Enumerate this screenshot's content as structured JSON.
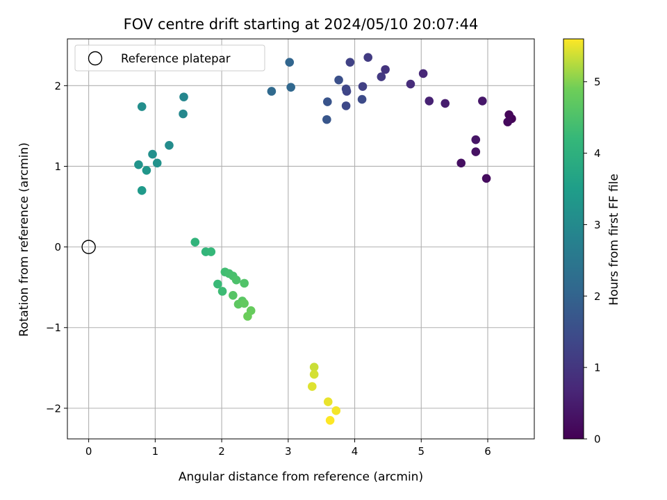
{
  "chart_data": {
    "type": "scatter",
    "title": "FOV centre drift starting at 2024/05/10 20:07:44",
    "xlabel": "Angular distance from reference (arcmin)",
    "ylabel": "Rotation from reference (arcmin)",
    "xlim": [
      -0.32,
      6.7
    ],
    "ylim": [
      -2.38,
      2.58
    ],
    "xticks": [
      0,
      1,
      2,
      3,
      4,
      5,
      6
    ],
    "yticks": [
      -2,
      -1,
      0,
      1,
      2
    ],
    "grid": true,
    "colormap": "viridis",
    "colorbar": {
      "label": "Hours from first FF file",
      "range": [
        0,
        5.6
      ],
      "ticks": [
        0,
        1,
        2,
        3,
        4,
        5
      ]
    },
    "reference": {
      "label": "Reference platepar",
      "x": 0,
      "y": 0
    },
    "legend_position": "upper-left",
    "points": [
      {
        "x": 6.36,
        "y": 1.59,
        "c": 0.05
      },
      {
        "x": 6.32,
        "y": 1.64,
        "c": 0.1
      },
      {
        "x": 6.3,
        "y": 1.55,
        "c": 0.15
      },
      {
        "x": 5.98,
        "y": 0.85,
        "c": 0.2
      },
      {
        "x": 5.6,
        "y": 1.04,
        "c": 0.25
      },
      {
        "x": 5.82,
        "y": 1.18,
        "c": 0.3
      },
      {
        "x": 5.82,
        "y": 1.33,
        "c": 0.35
      },
      {
        "x": 5.92,
        "y": 1.81,
        "c": 0.4
      },
      {
        "x": 5.36,
        "y": 1.78,
        "c": 0.5
      },
      {
        "x": 5.12,
        "y": 1.81,
        "c": 0.6
      },
      {
        "x": 5.03,
        "y": 2.15,
        "c": 0.7
      },
      {
        "x": 4.84,
        "y": 2.02,
        "c": 0.8
      },
      {
        "x": 4.46,
        "y": 2.2,
        "c": 0.95
      },
      {
        "x": 4.4,
        "y": 2.11,
        "c": 1.05
      },
      {
        "x": 4.2,
        "y": 2.35,
        "c": 1.1
      },
      {
        "x": 4.12,
        "y": 1.99,
        "c": 1.2
      },
      {
        "x": 3.93,
        "y": 2.29,
        "c": 1.25
      },
      {
        "x": 3.88,
        "y": 1.93,
        "c": 1.3
      },
      {
        "x": 3.87,
        "y": 1.96,
        "c": 1.35
      },
      {
        "x": 3.87,
        "y": 1.75,
        "c": 1.4
      },
      {
        "x": 4.11,
        "y": 1.83,
        "c": 1.45
      },
      {
        "x": 3.76,
        "y": 2.07,
        "c": 1.55
      },
      {
        "x": 3.59,
        "y": 1.8,
        "c": 1.65
      },
      {
        "x": 3.58,
        "y": 1.58,
        "c": 1.7
      },
      {
        "x": 3.02,
        "y": 2.29,
        "c": 2.05
      },
      {
        "x": 3.04,
        "y": 1.98,
        "c": 2.1
      },
      {
        "x": 2.75,
        "y": 1.93,
        "c": 2.15
      },
      {
        "x": 1.43,
        "y": 1.86,
        "c": 2.9
      },
      {
        "x": 1.42,
        "y": 1.65,
        "c": 2.95
      },
      {
        "x": 1.21,
        "y": 1.26,
        "c": 3.05
      },
      {
        "x": 0.8,
        "y": 1.74,
        "c": 3.1
      },
      {
        "x": 0.96,
        "y": 1.15,
        "c": 3.15
      },
      {
        "x": 1.03,
        "y": 1.04,
        "c": 3.2
      },
      {
        "x": 0.75,
        "y": 1.02,
        "c": 3.25
      },
      {
        "x": 0.87,
        "y": 0.95,
        "c": 3.3
      },
      {
        "x": 0.8,
        "y": 0.7,
        "c": 3.4
      },
      {
        "x": 1.6,
        "y": 0.06,
        "c": 4.1
      },
      {
        "x": 1.76,
        "y": -0.06,
        "c": 4.15
      },
      {
        "x": 1.84,
        "y": -0.06,
        "c": 4.2
      },
      {
        "x": 1.94,
        "y": -0.46,
        "c": 4.25
      },
      {
        "x": 2.01,
        "y": -0.55,
        "c": 4.3
      },
      {
        "x": 2.05,
        "y": -0.31,
        "c": 4.35
      },
      {
        "x": 2.11,
        "y": -0.33,
        "c": 4.4
      },
      {
        "x": 2.17,
        "y": -0.36,
        "c": 4.45
      },
      {
        "x": 2.22,
        "y": -0.41,
        "c": 4.5
      },
      {
        "x": 2.34,
        "y": -0.45,
        "c": 4.55
      },
      {
        "x": 2.17,
        "y": -0.6,
        "c": 4.6
      },
      {
        "x": 2.31,
        "y": -0.67,
        "c": 4.65
      },
      {
        "x": 2.25,
        "y": -0.71,
        "c": 4.7
      },
      {
        "x": 2.34,
        "y": -0.7,
        "c": 4.75
      },
      {
        "x": 2.44,
        "y": -0.79,
        "c": 4.8
      },
      {
        "x": 2.39,
        "y": -0.86,
        "c": 4.85
      },
      {
        "x": 3.39,
        "y": -1.49,
        "c": 5.35
      },
      {
        "x": 3.39,
        "y": -1.58,
        "c": 5.4
      },
      {
        "x": 3.36,
        "y": -1.73,
        "c": 5.45
      },
      {
        "x": 3.6,
        "y": -1.92,
        "c": 5.5
      },
      {
        "x": 3.72,
        "y": -2.03,
        "c": 5.55
      },
      {
        "x": 3.63,
        "y": -2.15,
        "c": 5.6
      }
    ]
  }
}
